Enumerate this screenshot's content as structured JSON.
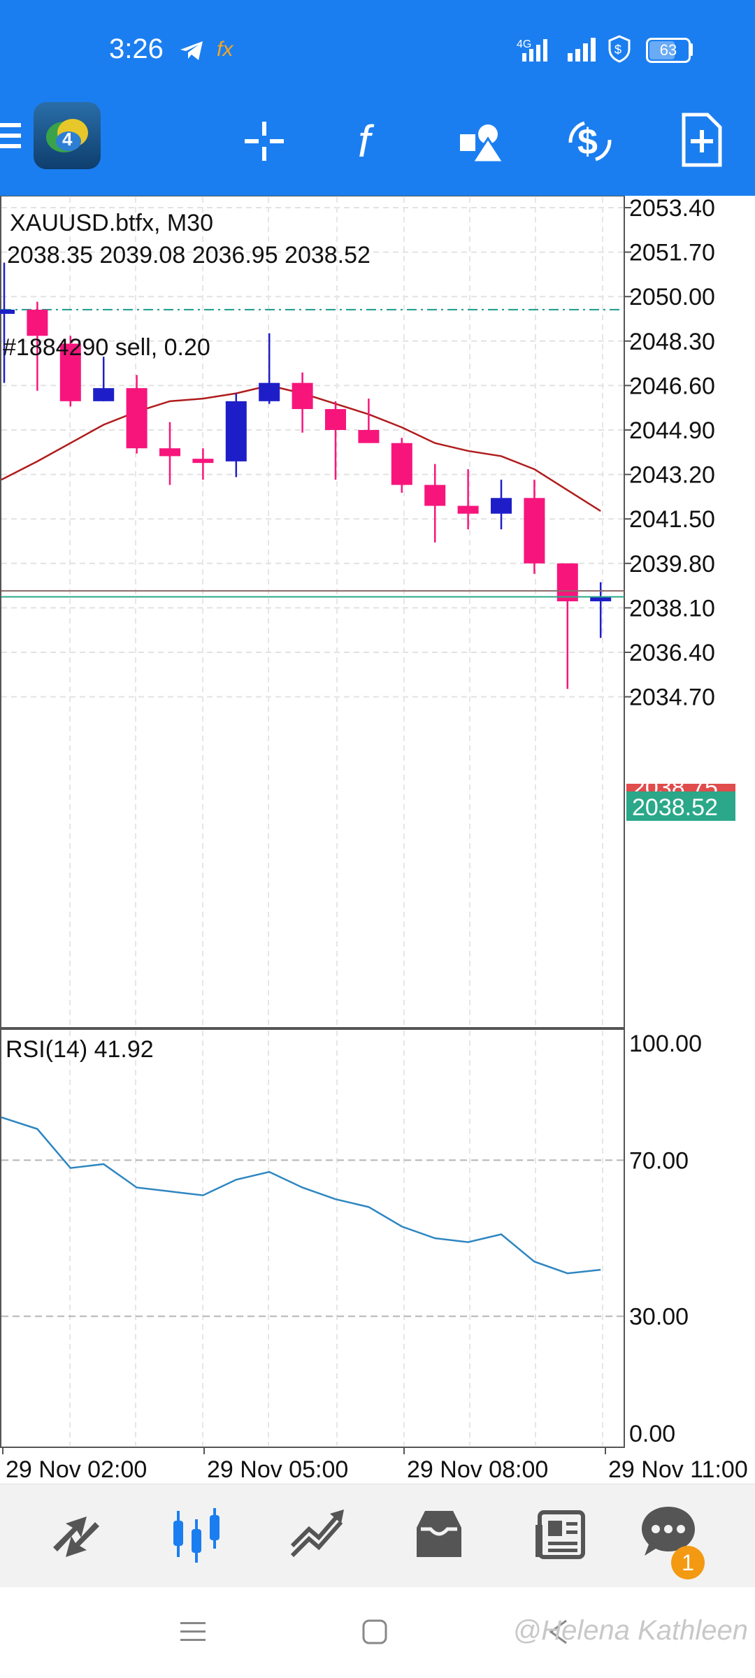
{
  "status_bar": {
    "time": "3:26",
    "battery": "63",
    "icons": [
      "telegram-icon",
      "fx-icon",
      "data-4g-icon",
      "signal-icon",
      "shield-icon",
      "battery-icon"
    ]
  },
  "toolbar": {
    "icons": [
      "menu-icon",
      "mt4-logo-icon",
      "crosshair-icon",
      "indicators-f-icon",
      "objects-icon",
      "trade-dollar-icon",
      "new-order-icon"
    ]
  },
  "chart": {
    "symbol_line": "XAUUSD.btfx, M30",
    "ohlc_line": "2038.35 2039.08 2036.95 2038.52",
    "order_label": "#1884290 sell, 0.20",
    "bid_tag": "2038.52",
    "ask_tag": "2038.75",
    "rsi_label": "RSI(14) 41.92",
    "colors": {
      "bull": "#1e1ec8",
      "bear": "#f7157c",
      "ma": "#b01c1c",
      "rsi": "#2e86c1",
      "bid": "#2aa889",
      "ask": "#e14c4c",
      "order_line": "#1a9a8a"
    }
  },
  "chart_data": [
    {
      "type": "candlestick",
      "title": "XAUUSD.btfx, M30",
      "ylim": [
        2033.5,
        2054.5
      ],
      "yticks": [
        "2053.40",
        "2051.70",
        "2050.00",
        "2048.30",
        "2046.60",
        "2044.90",
        "2043.20",
        "2041.50",
        "2039.80",
        "2038.10",
        "2036.40",
        "2034.70"
      ],
      "xticks": [
        "29 Nov 02:00",
        "29 Nov 05:00",
        "29 Nov 08:00",
        "29 Nov 11:00"
      ],
      "candles": [
        {
          "o": 2049.4,
          "h": 2051.3,
          "l": 2046.7,
          "c": 2049.5
        },
        {
          "o": 2049.5,
          "h": 2049.8,
          "l": 2046.4,
          "c": 2048.5
        },
        {
          "o": 2048.2,
          "h": 2048.5,
          "l": 2045.8,
          "c": 2046.0
        },
        {
          "o": 2046.0,
          "h": 2047.7,
          "l": 2046.0,
          "c": 2046.5
        },
        {
          "o": 2046.5,
          "h": 2047.0,
          "l": 2044.0,
          "c": 2044.2
        },
        {
          "o": 2044.2,
          "h": 2045.2,
          "l": 2042.8,
          "c": 2043.9
        },
        {
          "o": 2043.8,
          "h": 2044.2,
          "l": 2043.0,
          "c": 2043.7
        },
        {
          "o": 2043.7,
          "h": 2046.3,
          "l": 2043.1,
          "c": 2046.0
        },
        {
          "o": 2046.0,
          "h": 2048.6,
          "l": 2045.9,
          "c": 2046.7
        },
        {
          "o": 2046.7,
          "h": 2047.1,
          "l": 2044.8,
          "c": 2045.7
        },
        {
          "o": 2045.7,
          "h": 2046.0,
          "l": 2043.0,
          "c": 2044.9
        },
        {
          "o": 2044.9,
          "h": 2046.1,
          "l": 2044.5,
          "c": 2044.4
        },
        {
          "o": 2044.4,
          "h": 2044.6,
          "l": 2042.5,
          "c": 2042.8
        },
        {
          "o": 2042.8,
          "h": 2043.6,
          "l": 2040.6,
          "c": 2042.0
        },
        {
          "o": 2042.0,
          "h": 2043.4,
          "l": 2041.1,
          "c": 2041.7
        },
        {
          "o": 2041.7,
          "h": 2043.0,
          "l": 2041.1,
          "c": 2042.3
        },
        {
          "o": 2042.3,
          "h": 2043.0,
          "l": 2039.4,
          "c": 2039.8
        },
        {
          "o": 2039.8,
          "h": 2039.8,
          "l": 2035.0,
          "c": 2038.35
        },
        {
          "o": 2038.35,
          "h": 2039.08,
          "l": 2036.95,
          "c": 2038.52
        }
      ],
      "ma": [
        2043.0,
        2043.7,
        2044.4,
        2045.1,
        2045.6,
        2046.0,
        2046.1,
        2046.3,
        2046.6,
        2046.3,
        2045.9,
        2045.5,
        2045.0,
        2044.4,
        2044.1,
        2043.9,
        2043.4,
        2042.6,
        2041.8
      ],
      "order_level": 2049.5,
      "bid": 2038.52,
      "ask": 2038.75
    },
    {
      "type": "line",
      "title": "RSI(14) 41.92",
      "ylim": [
        0,
        100
      ],
      "yticks": [
        "100.00",
        "70.00",
        "30.00",
        "0.00"
      ],
      "levels": [
        70,
        30
      ],
      "series": [
        {
          "values": [
            81,
            78,
            68,
            69,
            63,
            62,
            61,
            65,
            67,
            63,
            60,
            58,
            53,
            50,
            49,
            51,
            44,
            41,
            41.92
          ]
        }
      ]
    }
  ],
  "bottom_nav": {
    "items": [
      "quotes-tab",
      "chart-tab",
      "trade-tab",
      "history-tab",
      "news-tab",
      "messages-tab"
    ],
    "messages_badge": "1"
  },
  "system_nav": {
    "icons": [
      "recents-icon",
      "home-icon",
      "back-icon"
    ]
  },
  "watermark": "@Helena Kathleen"
}
